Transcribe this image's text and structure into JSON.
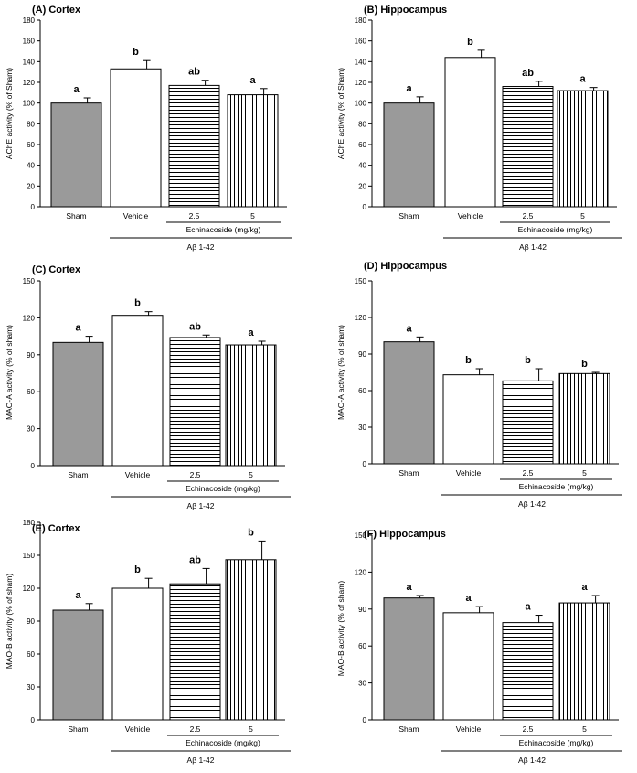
{
  "figure": {
    "group_label": "Aβ 1-42",
    "treatment_label": "Echinacoside (mg/kg)"
  },
  "chart_data": [
    {
      "panel": "A",
      "type": "bar",
      "title": "(A) Cortex",
      "ylabel": "AChE activity (% of Sham)",
      "ylim": [
        0,
        180
      ],
      "yticks": [
        0,
        20,
        40,
        60,
        80,
        100,
        120,
        140,
        160,
        180
      ],
      "categories": [
        "Sham",
        "Vehicle",
        "2.5",
        "5"
      ],
      "values": [
        100,
        133,
        117,
        108
      ],
      "errors": [
        5,
        8,
        5,
        6
      ],
      "letters": [
        "a",
        "b",
        "ab",
        "a"
      ]
    },
    {
      "panel": "B",
      "type": "bar",
      "title": "(B) Hippocampus",
      "ylabel": "AChE activity (% of Sham)",
      "ylim": [
        0,
        180
      ],
      "yticks": [
        0,
        20,
        40,
        60,
        80,
        100,
        120,
        140,
        160,
        180
      ],
      "categories": [
        "Sham",
        "Vehicle",
        "2.5",
        "5"
      ],
      "values": [
        100,
        144,
        116,
        112
      ],
      "errors": [
        6,
        7,
        5,
        3
      ],
      "letters": [
        "a",
        "b",
        "ab",
        "a"
      ]
    },
    {
      "panel": "C",
      "type": "bar",
      "title": "(C) Cortex",
      "ylabel": "MAO-A activity (% of sham)",
      "ylim": [
        0,
        150
      ],
      "yticks": [
        0,
        30,
        60,
        90,
        120,
        150
      ],
      "categories": [
        "Sham",
        "Vehicle",
        "2.5",
        "5"
      ],
      "values": [
        100,
        122,
        104,
        98
      ],
      "errors": [
        5,
        3,
        2,
        3
      ],
      "letters": [
        "a",
        "b",
        "ab",
        "a"
      ]
    },
    {
      "panel": "D",
      "type": "bar",
      "title": "(D) Hippocampus",
      "ylabel": "MAO-A activity (% of sham)",
      "ylim": [
        0,
        150
      ],
      "yticks": [
        0,
        30,
        60,
        90,
        120,
        150
      ],
      "categories": [
        "Sham",
        "Vehicle",
        "2.5",
        "5"
      ],
      "values": [
        100,
        73,
        68,
        74
      ],
      "errors": [
        4,
        5,
        10,
        1
      ],
      "letters": [
        "a",
        "b",
        "b",
        "b"
      ]
    },
    {
      "panel": "E",
      "type": "bar",
      "title": "(E) Cortex",
      "ylabel": "MAO-B activity (% of sham)",
      "ylim": [
        0,
        180
      ],
      "yticks": [
        0,
        30,
        60,
        90,
        120,
        150,
        180
      ],
      "categories": [
        "Sham",
        "Vehicle",
        "2.5",
        "5"
      ],
      "values": [
        100,
        120,
        124,
        146
      ],
      "errors": [
        6,
        9,
        14,
        17
      ],
      "letters": [
        "a",
        "b",
        "ab",
        "b"
      ]
    },
    {
      "panel": "F",
      "type": "bar",
      "title": "(F) Hippocampus",
      "ylabel": "MAO-B activity (% of sham)",
      "ylim": [
        0,
        150
      ],
      "yticks": [
        0,
        30,
        60,
        90,
        120,
        150
      ],
      "categories": [
        "Sham",
        "Vehicle",
        "2.5",
        "5"
      ],
      "values": [
        99,
        87,
        79,
        95
      ],
      "errors": [
        2,
        5,
        6,
        6
      ],
      "letters": [
        "a",
        "a",
        "a",
        "a"
      ]
    }
  ]
}
